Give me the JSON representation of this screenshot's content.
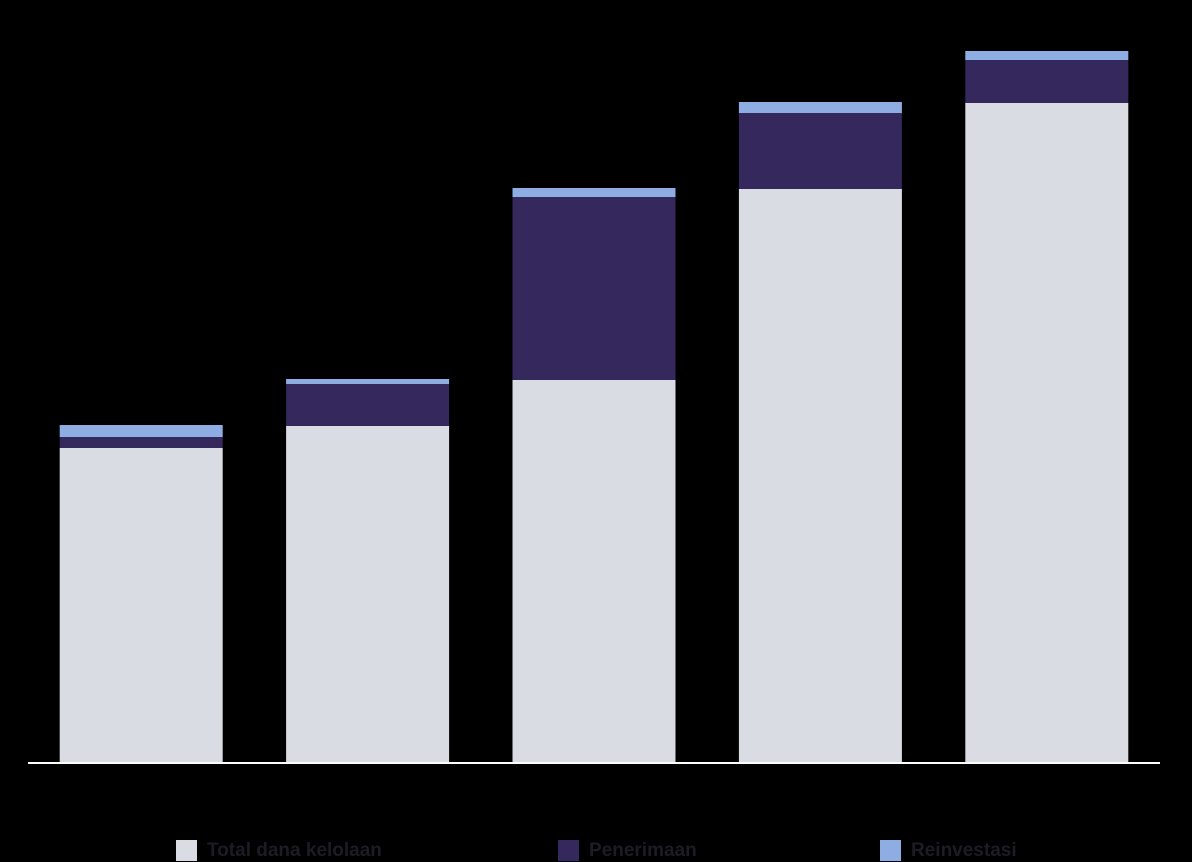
{
  "chart_data": {
    "type": "stacked-bar",
    "categories": [
      null,
      null,
      null,
      null,
      null
    ],
    "series": [
      {
        "name": "Total dana kelolaan",
        "color": "#d9dce3",
        "values": [
          315,
          337,
          383,
          574,
          660
        ]
      },
      {
        "name": "Penerimaan",
        "color": "#34285c",
        "values": [
          11,
          42,
          183,
          76,
          43
        ]
      },
      {
        "name": "Reinvestasi",
        "color": "#8eaee3",
        "values": [
          12,
          5,
          9,
          11,
          9
        ]
      }
    ],
    "ylim": [
      0,
      720
    ]
  }
}
